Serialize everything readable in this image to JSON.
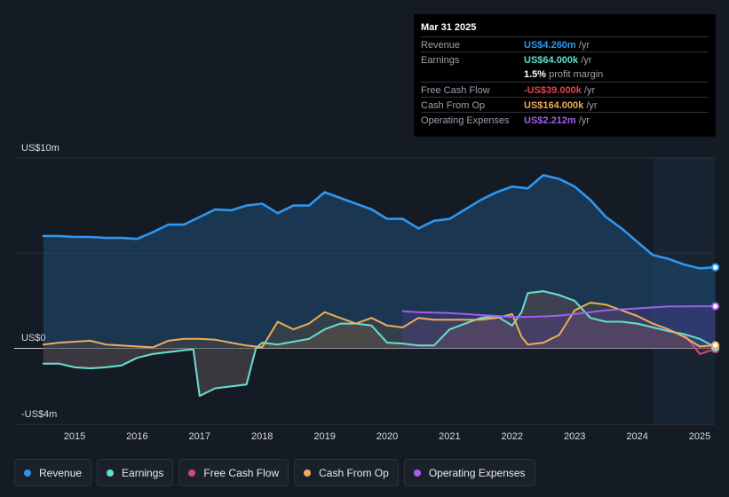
{
  "tooltip": {
    "date": "Mar 31 2025",
    "rows": [
      {
        "label": "Revenue",
        "value": "US$4.260m",
        "unit": "/yr",
        "color": "#2f96f0"
      },
      {
        "label": "Earnings",
        "value": "US$64.000k",
        "unit": "/yr",
        "color": "#5ee0cb"
      },
      {
        "label": "",
        "value": "1.5%",
        "unit": "profit margin",
        "color": "#ffffff"
      },
      {
        "label": "Free Cash Flow",
        "value": "-US$39.000k",
        "unit": "/yr",
        "color": "#e8434f"
      },
      {
        "label": "Cash From Op",
        "value": "US$164.000k",
        "unit": "/yr",
        "color": "#f0ab5a"
      },
      {
        "label": "Operating Expenses",
        "value": "US$2.212m",
        "unit": "/yr",
        "color": "#a25ef0"
      }
    ]
  },
  "legend": [
    {
      "label": "Revenue",
      "color": "#2f96f0"
    },
    {
      "label": "Earnings",
      "color": "#5ee0cb"
    },
    {
      "label": "Free Cash Flow",
      "color": "#c84c7e"
    },
    {
      "label": "Cash From Op",
      "color": "#f0ab5a"
    },
    {
      "label": "Operating Expenses",
      "color": "#a25ef0"
    }
  ],
  "chart_data": {
    "type": "area",
    "title": "",
    "xlabel": "",
    "ylabel": "",
    "units": "US$ millions",
    "ylim": [
      -4,
      10
    ],
    "xlim": [
      2014.5,
      2025.25
    ],
    "y_tick_labels": [
      "US$10m",
      "US$0",
      "-US$4m"
    ],
    "y_tick_values": [
      10,
      0,
      -4
    ],
    "x_tick_labels": [
      "2015",
      "2016",
      "2017",
      "2018",
      "2019",
      "2020",
      "2021",
      "2022",
      "2023",
      "2024",
      "2025"
    ],
    "x_tick_values": [
      2015,
      2016,
      2017,
      2018,
      2019,
      2020,
      2021,
      2022,
      2023,
      2024,
      2025
    ],
    "forecast_start": 2024.25,
    "series": [
      {
        "name": "Revenue",
        "color": "#2f96f0",
        "x": [
          2014.5,
          2014.75,
          2015.0,
          2015.25,
          2015.5,
          2015.75,
          2016.0,
          2016.25,
          2016.5,
          2016.75,
          2017.0,
          2017.25,
          2017.5,
          2017.75,
          2018.0,
          2018.25,
          2018.5,
          2018.75,
          2019.0,
          2019.25,
          2019.5,
          2019.75,
          2020.0,
          2020.25,
          2020.5,
          2020.75,
          2021.0,
          2021.25,
          2021.5,
          2021.75,
          2022.0,
          2022.25,
          2022.5,
          2022.75,
          2023.0,
          2023.25,
          2023.5,
          2023.75,
          2024.0,
          2024.25,
          2024.5,
          2024.75,
          2025.0,
          2025.25
        ],
        "values": [
          5.9,
          5.9,
          5.85,
          5.85,
          5.8,
          5.8,
          5.75,
          6.1,
          6.5,
          6.5,
          6.9,
          7.3,
          7.25,
          7.5,
          7.6,
          7.1,
          7.5,
          7.5,
          8.2,
          7.9,
          7.6,
          7.3,
          6.8,
          6.8,
          6.3,
          6.7,
          6.8,
          7.3,
          7.8,
          8.2,
          8.5,
          8.4,
          9.1,
          8.9,
          8.5,
          7.8,
          6.9,
          6.3,
          5.6,
          4.9,
          4.7,
          4.4,
          4.2,
          4.26
        ]
      },
      {
        "name": "Earnings",
        "color": "#5ee0cb",
        "x": [
          2014.5,
          2014.75,
          2015.0,
          2015.25,
          2015.5,
          2015.75,
          2016.0,
          2016.25,
          2016.5,
          2016.75,
          2016.9,
          2017.0,
          2017.25,
          2017.5,
          2017.75,
          2017.9,
          2018.0,
          2018.25,
          2018.5,
          2018.75,
          2019.0,
          2019.25,
          2019.5,
          2019.75,
          2020.0,
          2020.25,
          2020.5,
          2020.75,
          2021.0,
          2021.25,
          2021.5,
          2021.75,
          2022.0,
          2022.15,
          2022.25,
          2022.5,
          2022.75,
          2023.0,
          2023.25,
          2023.5,
          2023.75,
          2024.0,
          2024.25,
          2024.5,
          2024.75,
          2025.0,
          2025.25
        ],
        "values": [
          -0.8,
          -0.8,
          -1.0,
          -1.05,
          -1.0,
          -0.9,
          -0.5,
          -0.3,
          -0.2,
          -0.1,
          -0.05,
          -2.5,
          -2.1,
          -2.0,
          -1.9,
          0.0,
          0.3,
          0.2,
          0.35,
          0.5,
          1.0,
          1.3,
          1.3,
          1.2,
          0.3,
          0.25,
          0.15,
          0.15,
          1.0,
          1.3,
          1.6,
          1.7,
          1.2,
          1.9,
          2.9,
          3.0,
          2.8,
          2.5,
          1.6,
          1.4,
          1.4,
          1.3,
          1.1,
          0.9,
          0.75,
          0.5,
          0.064
        ]
      },
      {
        "name": "Free Cash Flow",
        "color": "#c84c7e",
        "x": [
          2014.5,
          2014.75,
          2015.0,
          2015.25,
          2015.5,
          2015.75,
          2016.0,
          2016.25,
          2016.5,
          2016.75,
          2016.9,
          2017.0,
          2017.25,
          2017.5,
          2017.75,
          2017.9,
          2018.0,
          2018.25,
          2018.5,
          2018.75,
          2019.0,
          2019.25,
          2019.5,
          2019.75,
          2020.0,
          2020.25,
          2020.5,
          2020.75,
          2021.0,
          2021.25,
          2021.5,
          2021.75,
          2022.0,
          2022.15,
          2022.25,
          2022.5,
          2022.75,
          2023.0,
          2023.25,
          2023.5,
          2023.75,
          2024.0,
          2024.25,
          2024.5,
          2024.75,
          2025.0,
          2025.25
        ],
        "values": [
          -0.8,
          -0.8,
          -1.0,
          -1.05,
          -1.0,
          -0.9,
          -0.5,
          -0.3,
          -0.2,
          -0.1,
          -0.05,
          -2.5,
          -2.1,
          -2.0,
          -1.9,
          0.0,
          0.3,
          0.2,
          0.35,
          0.5,
          1.0,
          1.3,
          1.3,
          1.2,
          0.3,
          0.25,
          0.15,
          0.15,
          1.0,
          1.3,
          1.6,
          1.7,
          1.2,
          1.9,
          2.9,
          3.0,
          2.8,
          2.5,
          1.6,
          1.4,
          1.4,
          1.3,
          1.1,
          0.9,
          0.75,
          -0.3,
          -0.039
        ]
      },
      {
        "name": "Cash From Op",
        "color": "#f0ab5a",
        "x": [
          2014.5,
          2014.75,
          2015.0,
          2015.25,
          2015.5,
          2015.75,
          2016.0,
          2016.25,
          2016.5,
          2016.75,
          2017.0,
          2017.25,
          2017.5,
          2017.75,
          2018.0,
          2018.25,
          2018.5,
          2018.75,
          2019.0,
          2019.25,
          2019.5,
          2019.75,
          2020.0,
          2020.25,
          2020.5,
          2020.75,
          2021.0,
          2021.25,
          2021.5,
          2021.75,
          2022.0,
          2022.15,
          2022.25,
          2022.5,
          2022.75,
          2023.0,
          2023.25,
          2023.5,
          2023.75,
          2024.0,
          2024.25,
          2024.5,
          2024.75,
          2025.0,
          2025.25
        ],
        "values": [
          0.2,
          0.3,
          0.35,
          0.4,
          0.2,
          0.15,
          0.1,
          0.05,
          0.4,
          0.5,
          0.5,
          0.45,
          0.3,
          0.15,
          0.05,
          1.4,
          1.0,
          1.3,
          1.9,
          1.6,
          1.3,
          1.6,
          1.2,
          1.1,
          1.6,
          1.5,
          1.5,
          1.5,
          1.5,
          1.6,
          1.8,
          0.6,
          0.2,
          0.3,
          0.7,
          2.0,
          2.4,
          2.3,
          2.0,
          1.7,
          1.3,
          1.0,
          0.6,
          0.1,
          0.164
        ]
      },
      {
        "name": "Operating Expenses",
        "color": "#a25ef0",
        "x": [
          2020.25,
          2020.5,
          2020.75,
          2021.0,
          2021.25,
          2021.5,
          2021.75,
          2022.0,
          2022.25,
          2022.5,
          2022.75,
          2023.0,
          2023.25,
          2023.5,
          2023.75,
          2024.0,
          2024.25,
          2024.5,
          2024.75,
          2025.0,
          2025.25
        ],
        "values": [
          1.95,
          1.9,
          1.88,
          1.85,
          1.8,
          1.75,
          1.7,
          1.65,
          1.65,
          1.68,
          1.72,
          1.8,
          1.9,
          2.0,
          2.05,
          2.1,
          2.15,
          2.2,
          2.2,
          2.21,
          2.212
        ]
      }
    ]
  }
}
